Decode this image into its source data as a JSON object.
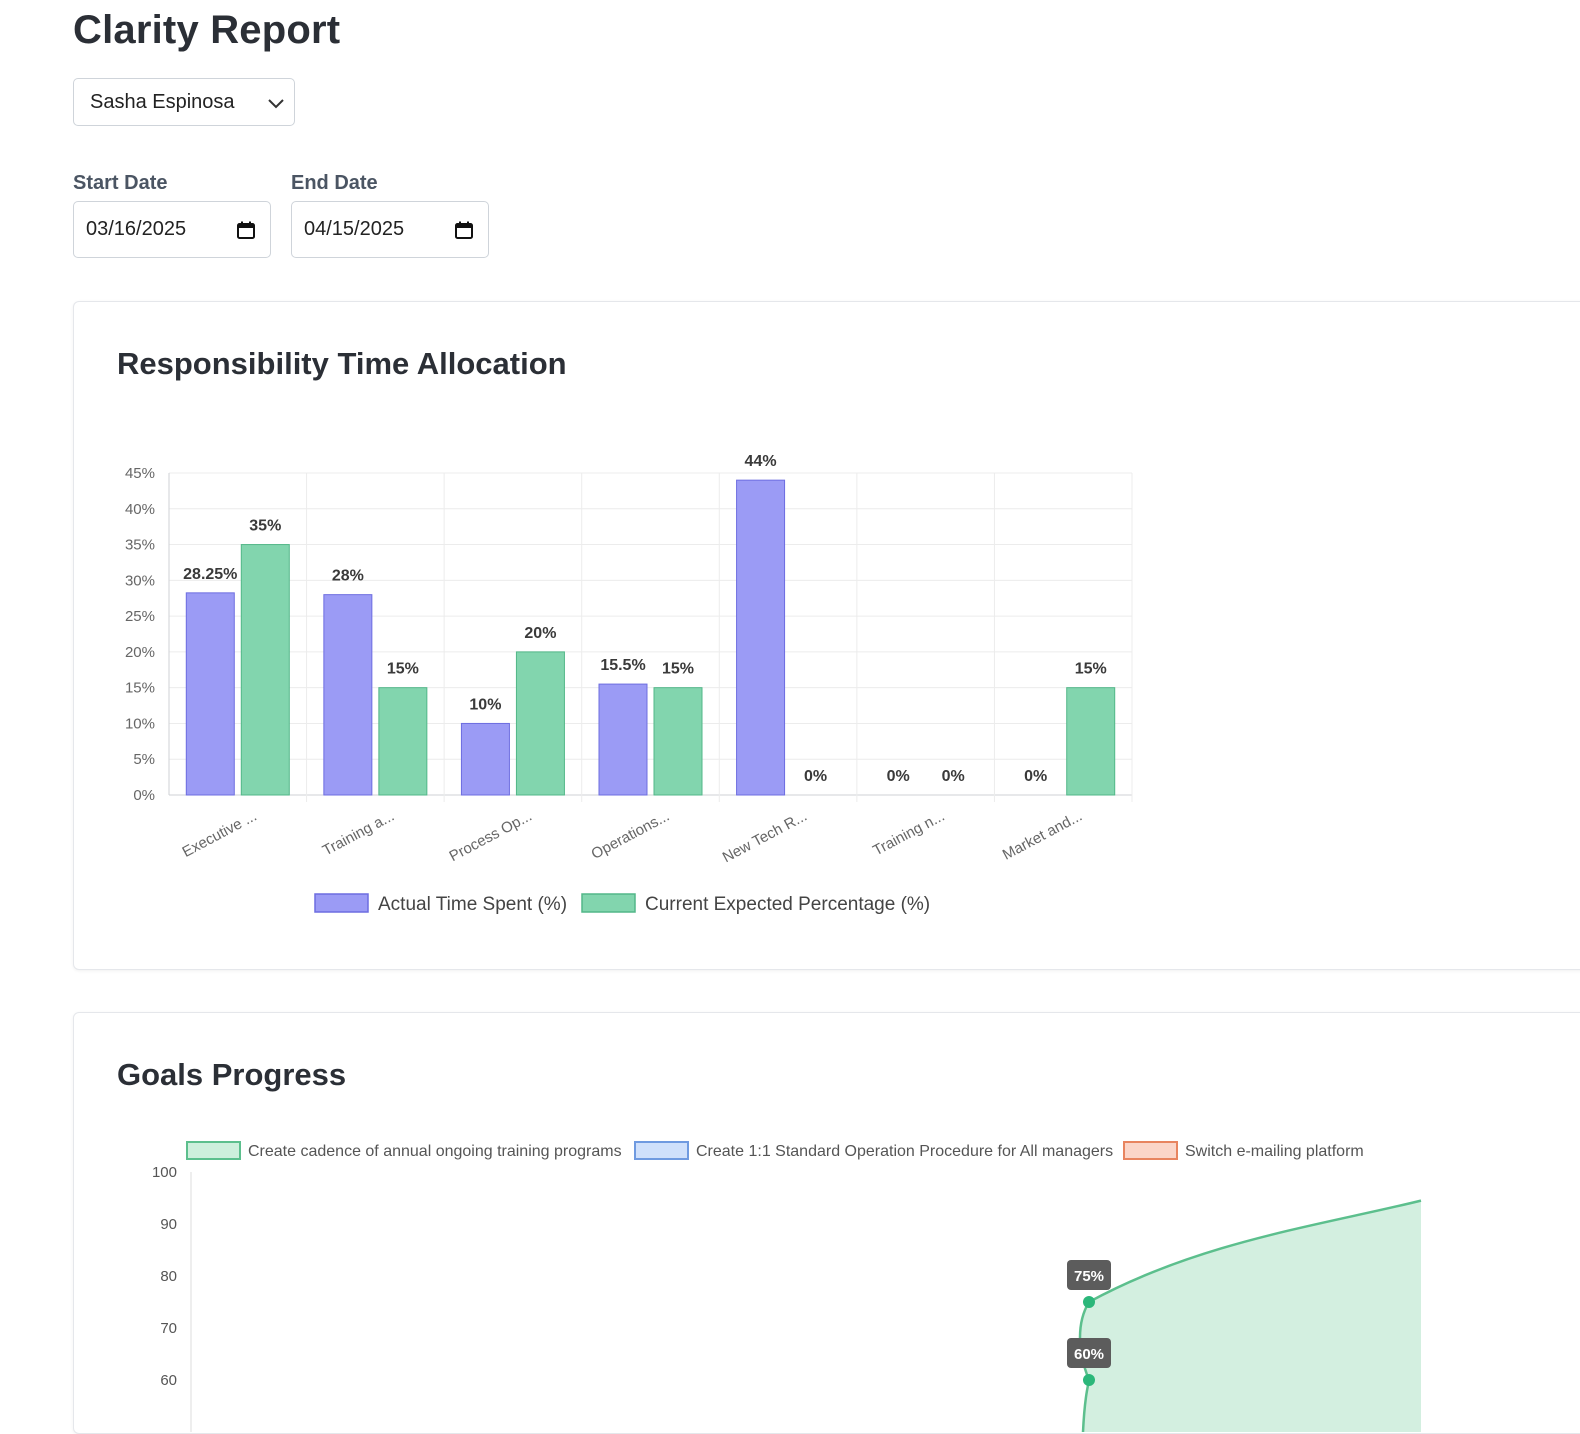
{
  "page": {
    "title": "Clarity Report"
  },
  "filters": {
    "person": "Sasha Espinosa",
    "start_label": "Start Date",
    "start_value": "03/16/2025",
    "end_label": "End Date",
    "end_value": "04/15/2025"
  },
  "allocation_card": {
    "title": "Responsibility Time Allocation"
  },
  "goals_card": {
    "title": "Goals Progress"
  },
  "chart_data": [
    {
      "type": "bar",
      "title": "",
      "categories": [
        "Executive ...",
        "Training a...",
        "Process Op...",
        "Operations...",
        "New Tech R...",
        "Training n...",
        "Market and..."
      ],
      "series": [
        {
          "name": "Actual Time Spent (%)",
          "values": [
            28.25,
            28,
            10,
            15.5,
            44,
            0,
            0
          ],
          "labels": [
            "28.25%",
            "28%",
            "10%",
            "15.5%",
            "44%",
            "0%",
            "0%"
          ],
          "color": "#9b9bf5",
          "border": "#6d6de0"
        },
        {
          "name": "Current Expected Percentage (%)",
          "values": [
            35,
            15,
            20,
            15,
            0,
            0,
            15
          ],
          "labels": [
            "35%",
            "15%",
            "20%",
            "15%",
            "0%",
            "0%",
            "15%"
          ],
          "color": "#82d5ae",
          "border": "#52b788"
        }
      ],
      "yticks": [
        "0%",
        "5%",
        "10%",
        "15%",
        "20%",
        "25%",
        "30%",
        "35%",
        "40%",
        "45%"
      ],
      "ylim": [
        0,
        45
      ],
      "grid": true,
      "legend": "bottom"
    },
    {
      "type": "area",
      "title": "",
      "legend": "top",
      "legend_items": [
        {
          "name": "Create cadence of annual ongoing training programs",
          "fill": "#cdefdc",
          "stroke": "#5cbf8d"
        },
        {
          "name": "Create 1:1 Standard Operation Procedure for All managers",
          "fill": "#cfe0fb",
          "stroke": "#6f9ae0"
        },
        {
          "name": "Switch e-mailing platform",
          "fill": "#fbd5c8",
          "stroke": "#e8845f"
        }
      ],
      "yticks": [
        "60",
        "70",
        "80",
        "90",
        "100"
      ],
      "ylim": [
        55,
        100
      ],
      "series": [
        {
          "name": "Create cadence of annual ongoing training programs",
          "points": [
            60,
            75
          ],
          "labels": [
            "60%",
            "75%"
          ],
          "end_value": 94.5
        }
      ]
    }
  ]
}
